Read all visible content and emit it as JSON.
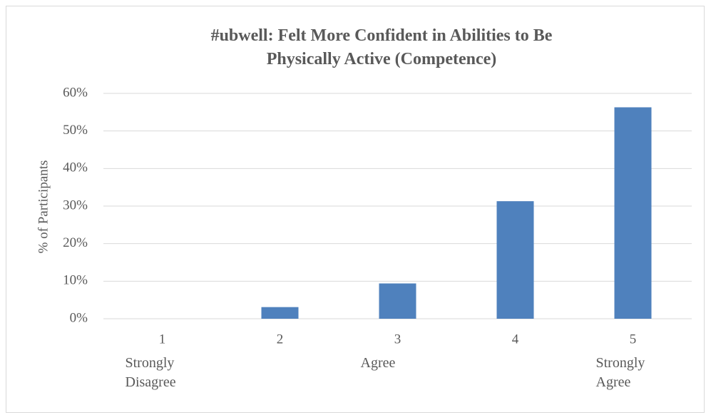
{
  "chart_data": {
    "type": "bar",
    "title": "#ubwell: Felt More Confident in Abilities to Be Physically Active (Competence)",
    "y_label": "% of Participants",
    "categories": [
      "1",
      "2",
      "3",
      "4",
      "5"
    ],
    "category_notes": [
      "Strongly Disagree",
      null,
      "Agree",
      null,
      "Strongly Agree"
    ],
    "values": [
      0,
      3.1,
      9.4,
      31.3,
      56.3
    ],
    "color": "#4f81bd",
    "ylim": [
      0,
      60
    ],
    "yticks": [
      {
        "value": 0,
        "label": "0%"
      },
      {
        "value": 10,
        "label": "10%"
      },
      {
        "value": 20,
        "label": "20%"
      },
      {
        "value": 30,
        "label": "30%"
      },
      {
        "value": 40,
        "label": "40%"
      },
      {
        "value": 50,
        "label": "50%"
      },
      {
        "value": 60,
        "label": "60%"
      }
    ],
    "grid": true
  }
}
